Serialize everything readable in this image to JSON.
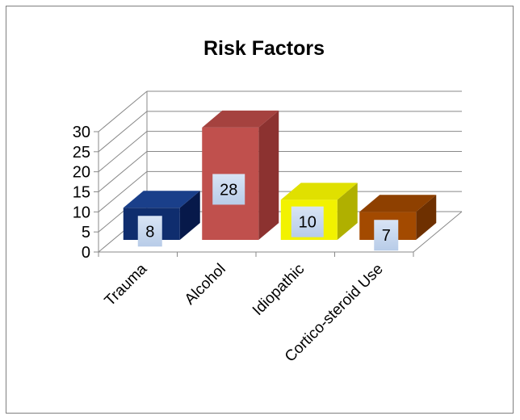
{
  "chart_data": {
    "type": "bar",
    "title": "Risk Factors",
    "xlabel": "",
    "ylabel": "",
    "ylim": [
      0,
      30
    ],
    "yticks": [
      0,
      5,
      10,
      15,
      20,
      25,
      30
    ],
    "grid": true,
    "legend": "none",
    "three_d": true,
    "categories": [
      "Trauma",
      "Alcohol",
      "Idiopathic",
      "Cortico-steroid Use"
    ],
    "values": [
      8,
      28,
      10,
      7
    ],
    "colors": [
      "#0f2d6e",
      "#c0504d",
      "#f2f200",
      "#a34a00"
    ],
    "side_colors": [
      "#07194a",
      "#8c3230",
      "#b0b000",
      "#6e3000"
    ],
    "top_colors": [
      "#1a3f8a",
      "#a5423f",
      "#e0e000",
      "#8e4000"
    ]
  }
}
